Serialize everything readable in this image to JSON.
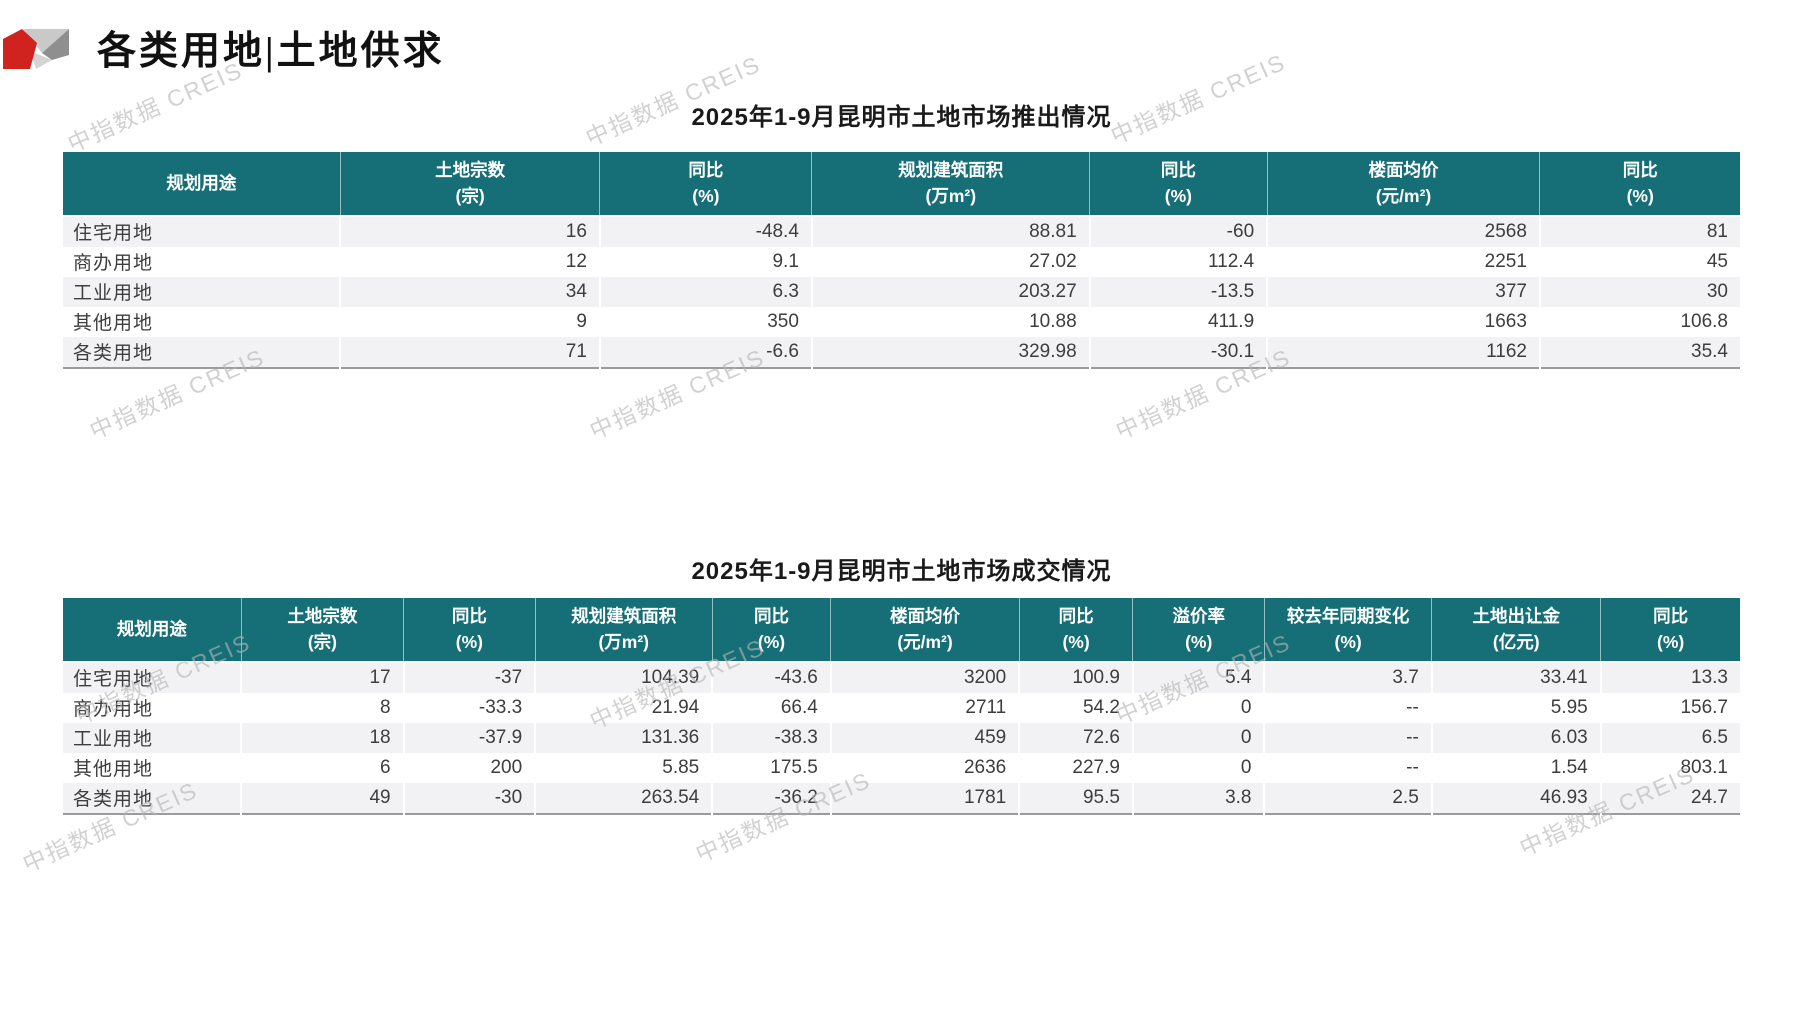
{
  "header": {
    "title": "各类用地|土地供求"
  },
  "watermark": {
    "text": "中指数据 CREIS"
  },
  "colors": {
    "header_bg": "#166F77",
    "accent_red": "#D0221F",
    "row_alt": "#F2F2F5",
    "watermark_gray": "#B5B5B5"
  },
  "tables": [
    {
      "title": "2025年1-9月昆明市土地市场推出情况",
      "columns": [
        {
          "line1": "规划用途",
          "line2": ""
        },
        {
          "line1": "土地宗数",
          "line2": "(宗)"
        },
        {
          "line1": "同比",
          "line2": "(%)"
        },
        {
          "line1": "规划建筑面积",
          "line2": "(万m²)"
        },
        {
          "line1": "同比",
          "line2": "(%)"
        },
        {
          "line1": "楼面均价",
          "line2": "(元/m²)"
        },
        {
          "line1": "同比",
          "line2": "(%)"
        }
      ],
      "rows": [
        {
          "label": "住宅用地",
          "values": [
            "16",
            "-48.4",
            "88.81",
            "-60",
            "2568",
            "81"
          ]
        },
        {
          "label": "商办用地",
          "values": [
            "12",
            "9.1",
            "27.02",
            "112.4",
            "2251",
            "45"
          ]
        },
        {
          "label": "工业用地",
          "values": [
            "34",
            "6.3",
            "203.27",
            "-13.5",
            "377",
            "30"
          ]
        },
        {
          "label": "其他用地",
          "values": [
            "9",
            "350",
            "10.88",
            "411.9",
            "1663",
            "106.8"
          ]
        },
        {
          "label": "各类用地",
          "values": [
            "71",
            "-6.6",
            "329.98",
            "-30.1",
            "1162",
            "35.4"
          ]
        }
      ]
    },
    {
      "title": "2025年1-9月昆明市土地市场成交情况",
      "columns": [
        {
          "line1": "规划用途",
          "line2": ""
        },
        {
          "line1": "土地宗数",
          "line2": "(宗)"
        },
        {
          "line1": "同比",
          "line2": "(%)"
        },
        {
          "line1": "规划建筑面积",
          "line2": "(万m²)"
        },
        {
          "line1": "同比",
          "line2": "(%)"
        },
        {
          "line1": "楼面均价",
          "line2": "(元/m²)"
        },
        {
          "line1": "同比",
          "line2": "(%)"
        },
        {
          "line1": "溢价率",
          "line2": "(%)"
        },
        {
          "line1": "较去年同期变化",
          "line2": "(%)"
        },
        {
          "line1": "土地出让金",
          "line2": "(亿元)"
        },
        {
          "line1": "同比",
          "line2": "(%)"
        }
      ],
      "rows": [
        {
          "label": "住宅用地",
          "values": [
            "17",
            "-37",
            "104.39",
            "-43.6",
            "3200",
            "100.9",
            "5.4",
            "3.7",
            "33.41",
            "13.3"
          ]
        },
        {
          "label": "商办用地",
          "values": [
            "8",
            "-33.3",
            "21.94",
            "66.4",
            "2711",
            "54.2",
            "0",
            "--",
            "5.95",
            "156.7"
          ]
        },
        {
          "label": "工业用地",
          "values": [
            "18",
            "-37.9",
            "131.36",
            "-38.3",
            "459",
            "72.6",
            "0",
            "--",
            "6.03",
            "6.5"
          ]
        },
        {
          "label": "其他用地",
          "values": [
            "6",
            "200",
            "5.85",
            "175.5",
            "2636",
            "227.9",
            "0",
            "--",
            "1.54",
            "803.1"
          ]
        },
        {
          "label": "各类用地",
          "values": [
            "49",
            "-30",
            "263.54",
            "-36.2",
            "1781",
            "95.5",
            "3.8",
            "2.5",
            "46.93",
            "24.7"
          ]
        }
      ]
    }
  ]
}
